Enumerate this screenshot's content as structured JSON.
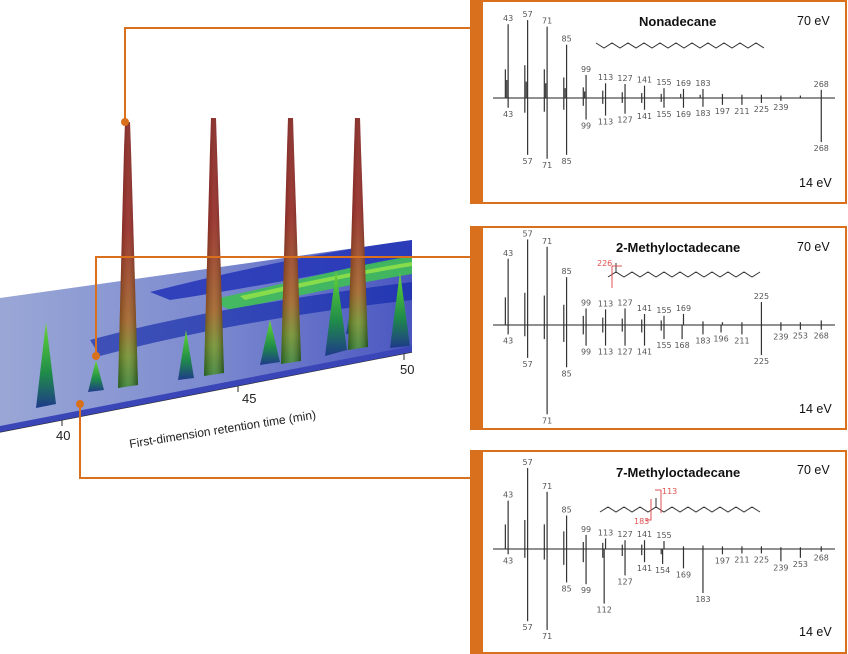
{
  "colors": {
    "connector": "#d8701e",
    "panel_border": "#d8701e",
    "fragment_highlight": "#e05050"
  },
  "surface_plot": {
    "xlabel": "First-dimension retention time (min)",
    "x_ticks": [
      "40",
      "45",
      "50"
    ]
  },
  "chart_data": [
    {
      "type": "bar",
      "panel": "Nonadecane",
      "title": "Nonadecane",
      "energy_top": "70 eV",
      "energy_bottom": "14 eV",
      "mz_range": [
        35,
        275
      ],
      "top_70eV": {
        "labeled": [
          [
            43,
            0.9
          ],
          [
            57,
            0.95
          ],
          [
            71,
            0.87
          ],
          [
            85,
            0.65
          ],
          [
            99,
            0.28
          ],
          [
            113,
            0.18
          ],
          [
            127,
            0.17
          ],
          [
            141,
            0.15
          ],
          [
            155,
            0.12
          ],
          [
            169,
            0.11
          ],
          [
            183,
            0.11
          ],
          [
            268,
            0.1
          ]
        ],
        "unlabeled": [
          [
            41,
            0.35
          ],
          [
            42,
            0.22
          ],
          [
            55,
            0.4
          ],
          [
            56,
            0.2
          ],
          [
            69,
            0.35
          ],
          [
            70,
            0.18
          ],
          [
            83,
            0.25
          ],
          [
            84,
            0.12
          ],
          [
            97,
            0.13
          ],
          [
            98,
            0.08
          ],
          [
            111,
            0.09
          ],
          [
            125,
            0.07
          ],
          [
            139,
            0.06
          ],
          [
            153,
            0.05
          ],
          [
            167,
            0.05
          ],
          [
            181,
            0.04
          ],
          [
            197,
            0.05
          ],
          [
            211,
            0.04
          ],
          [
            225,
            0.04
          ],
          [
            239,
            0.03
          ],
          [
            253,
            0.03
          ]
        ]
      },
      "bottom_14eV": {
        "labeled": [
          [
            43,
            0.1
          ],
          [
            57,
            0.58
          ],
          [
            71,
            0.62
          ],
          [
            85,
            0.58
          ],
          [
            99,
            0.22
          ],
          [
            113,
            0.18
          ],
          [
            127,
            0.16
          ],
          [
            141,
            0.12
          ],
          [
            155,
            0.1
          ],
          [
            169,
            0.1
          ],
          [
            183,
            0.09
          ],
          [
            197,
            0.07
          ],
          [
            211,
            0.07
          ],
          [
            225,
            0.05
          ],
          [
            239,
            0.03
          ],
          [
            268,
            0.45
          ]
        ],
        "unlabeled": [
          [
            55,
            0.15
          ],
          [
            69,
            0.14
          ],
          [
            83,
            0.12
          ],
          [
            97,
            0.08
          ],
          [
            111,
            0.06
          ],
          [
            125,
            0.05
          ],
          [
            139,
            0.05
          ],
          [
            153,
            0.04
          ]
        ]
      }
    },
    {
      "type": "bar",
      "panel": "2-Methyloctadecane",
      "title": "2-Methyloctadecane",
      "energy_top": "70 eV",
      "energy_bottom": "14 eV",
      "structure_fragment_label": "226",
      "mz_range": [
        35,
        275
      ],
      "top_70eV": {
        "labeled": [
          [
            43,
            0.72
          ],
          [
            57,
            0.93
          ],
          [
            71,
            0.85
          ],
          [
            85,
            0.52
          ],
          [
            99,
            0.18
          ],
          [
            113,
            0.17
          ],
          [
            127,
            0.18
          ],
          [
            141,
            0.12
          ],
          [
            155,
            0.1
          ],
          [
            169,
            0.12
          ],
          [
            225,
            0.25
          ]
        ],
        "unlabeled": [
          [
            41,
            0.3
          ],
          [
            55,
            0.35
          ],
          [
            69,
            0.32
          ],
          [
            83,
            0.22
          ],
          [
            97,
            0.1
          ],
          [
            111,
            0.08
          ],
          [
            125,
            0.07
          ],
          [
            139,
            0.06
          ],
          [
            153,
            0.05
          ],
          [
            183,
            0.04
          ],
          [
            197,
            0.03
          ],
          [
            211,
            0.03
          ],
          [
            239,
            0.03
          ],
          [
            253,
            0.03
          ],
          [
            268,
            0.05
          ]
        ]
      },
      "bottom_14eV": {
        "labeled": [
          [
            43,
            0.1
          ],
          [
            57,
            0.35
          ],
          [
            71,
            0.95
          ],
          [
            85,
            0.45
          ],
          [
            99,
            0.22
          ],
          [
            113,
            0.22
          ],
          [
            127,
            0.22
          ],
          [
            141,
            0.22
          ],
          [
            155,
            0.15
          ],
          [
            168,
            0.15
          ],
          [
            183,
            0.1
          ],
          [
            196,
            0.08
          ],
          [
            211,
            0.1
          ],
          [
            225,
            0.32
          ],
          [
            239,
            0.06
          ],
          [
            253,
            0.05
          ],
          [
            268,
            0.05
          ]
        ],
        "unlabeled": [
          [
            55,
            0.12
          ],
          [
            69,
            0.15
          ],
          [
            83,
            0.18
          ],
          [
            97,
            0.1
          ],
          [
            111,
            0.08
          ],
          [
            125,
            0.07
          ],
          [
            139,
            0.08
          ],
          [
            153,
            0.06
          ]
        ]
      }
    },
    {
      "type": "bar",
      "panel": "7-Methyloctadecane",
      "title": "7-Methyloctadecane",
      "energy_top": "70 eV",
      "energy_bottom": "14 eV",
      "structure_fragment_labels": [
        "113",
        "183"
      ],
      "mz_range": [
        35,
        275
      ],
      "top_70eV": {
        "labeled": [
          [
            43,
            0.55
          ],
          [
            57,
            0.92
          ],
          [
            71,
            0.65
          ],
          [
            85,
            0.38
          ],
          [
            99,
            0.16
          ],
          [
            113,
            0.12
          ],
          [
            127,
            0.1
          ],
          [
            141,
            0.1
          ],
          [
            155,
            0.09
          ]
        ],
        "unlabeled": [
          [
            41,
            0.28
          ],
          [
            55,
            0.33
          ],
          [
            69,
            0.28
          ],
          [
            83,
            0.2
          ],
          [
            97,
            0.08
          ],
          [
            111,
            0.07
          ],
          [
            125,
            0.05
          ],
          [
            139,
            0.05
          ],
          [
            169,
            0.03
          ],
          [
            183,
            0.04
          ],
          [
            197,
            0.03
          ],
          [
            211,
            0.03
          ],
          [
            225,
            0.03
          ],
          [
            239,
            0.02
          ],
          [
            253,
            0.02
          ],
          [
            268,
            0.03
          ]
        ]
      },
      "bottom_14eV": {
        "labeled": [
          [
            43,
            0.06
          ],
          [
            57,
            0.82
          ],
          [
            71,
            0.92
          ],
          [
            85,
            0.38
          ],
          [
            99,
            0.4
          ],
          [
            112,
            0.62
          ],
          [
            127,
            0.3
          ],
          [
            141,
            0.15
          ],
          [
            154,
            0.17
          ],
          [
            169,
            0.22
          ],
          [
            183,
            0.5
          ],
          [
            197,
            0.06
          ],
          [
            211,
            0.05
          ],
          [
            225,
            0.05
          ],
          [
            239,
            0.14
          ],
          [
            253,
            0.1
          ],
          [
            268,
            0.03
          ]
        ],
        "unlabeled": [
          [
            55,
            0.1
          ],
          [
            69,
            0.12
          ],
          [
            83,
            0.18
          ],
          [
            97,
            0.15
          ],
          [
            111,
            0.1
          ],
          [
            125,
            0.08
          ],
          [
            139,
            0.07
          ],
          [
            153,
            0.06
          ]
        ]
      }
    }
  ]
}
